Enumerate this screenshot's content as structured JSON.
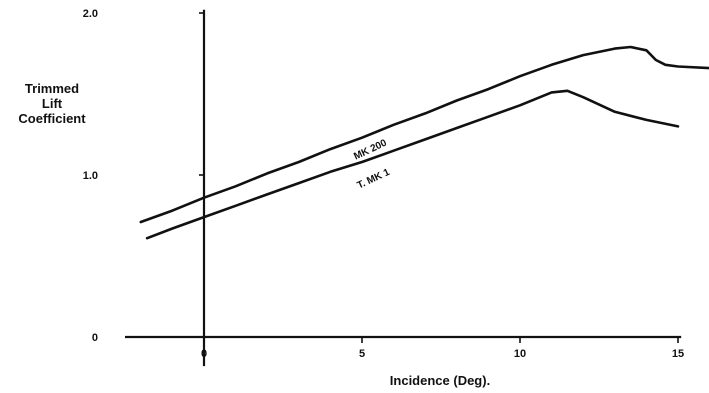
{
  "chart_data": {
    "type": "line",
    "title": "",
    "xlabel": "Incidence (Deg).",
    "ylabel": [
      "Trimmed",
      "Lift",
      "Coefficient"
    ],
    "xlim": [
      -2.5,
      16
    ],
    "ylim": [
      0,
      2.0
    ],
    "x_ticks": [
      0,
      5,
      10,
      15
    ],
    "x_tick_labels": [
      "0",
      "5",
      "10",
      "15"
    ],
    "y_ticks": [
      0,
      1.0,
      2.0
    ],
    "y_tick_labels": [
      "0",
      "1.0",
      "2.0"
    ],
    "grid": false,
    "legend": "none",
    "colors": {
      "line": "#111111",
      "background": "#ffffff"
    },
    "series": [
      {
        "name": "MK 200",
        "label_anchor": [
          5.3,
          1.14
        ],
        "x": [
          -2,
          -1,
          0,
          1,
          2,
          3,
          4,
          5,
          6,
          7,
          8,
          9,
          10,
          11,
          12,
          13,
          13.5,
          14,
          14.3,
          14.6,
          15,
          16
        ],
        "y": [
          0.71,
          0.78,
          0.86,
          0.93,
          1.01,
          1.08,
          1.16,
          1.23,
          1.31,
          1.38,
          1.46,
          1.53,
          1.61,
          1.68,
          1.74,
          1.78,
          1.79,
          1.77,
          1.71,
          1.68,
          1.67,
          1.66
        ]
      },
      {
        "name": "T. MK 1",
        "label_anchor": [
          5.4,
          0.96
        ],
        "x": [
          -1.8,
          -1,
          0,
          1,
          2,
          3,
          4,
          5,
          6,
          7,
          8,
          9,
          10,
          11,
          11.5,
          12,
          13,
          14,
          15
        ],
        "y": [
          0.61,
          0.67,
          0.74,
          0.81,
          0.88,
          0.95,
          1.02,
          1.08,
          1.15,
          1.22,
          1.29,
          1.36,
          1.43,
          1.51,
          1.52,
          1.48,
          1.39,
          1.34,
          1.3
        ]
      }
    ]
  }
}
